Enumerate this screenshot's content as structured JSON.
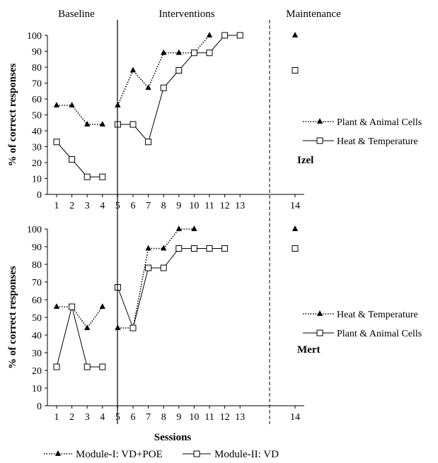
{
  "phases": [
    "Baseline",
    "Interventions",
    "Maintenance"
  ],
  "xlabel": "Sessions",
  "bottom_legend": [
    {
      "label": "Module-I: VD+POE",
      "marker": "triangle",
      "style": "dotted"
    },
    {
      "label": "Module-II: VD",
      "marker": "square",
      "style": "solid"
    }
  ],
  "colors": {
    "line": "#000000",
    "marker_fill_square": "#ffffff",
    "marker_fill_triangle": "#000000"
  },
  "chart_data": [
    {
      "type": "line",
      "participant": "Izel",
      "ylabel": "% of correct responses",
      "ylim": [
        0,
        100
      ],
      "yticks": [
        0,
        10,
        20,
        30,
        40,
        50,
        60,
        70,
        80,
        90,
        100
      ],
      "xticks": [
        1,
        2,
        3,
        4,
        5,
        6,
        7,
        8,
        9,
        10,
        11,
        12,
        13,
        14
      ],
      "grid": false,
      "legend_position": "right",
      "series": [
        {
          "name": "Plant & Animal Cells",
          "marker": "triangle",
          "style": "dotted",
          "segments": [
            [
              [
                1,
                56
              ],
              [
                2,
                56
              ],
              [
                3,
                44
              ],
              [
                4,
                44
              ]
            ],
            [
              [
                5,
                56
              ],
              [
                6,
                78
              ],
              [
                7,
                67
              ],
              [
                8,
                89
              ],
              [
                9,
                89
              ],
              [
                10,
                89
              ],
              [
                11,
                100
              ]
            ],
            [
              [
                14,
                100
              ]
            ]
          ]
        },
        {
          "name": "Heat & Temperature",
          "marker": "square",
          "style": "solid",
          "segments": [
            [
              [
                1,
                33
              ],
              [
                2,
                22
              ],
              [
                3,
                11
              ],
              [
                4,
                11
              ]
            ],
            [
              [
                5,
                44
              ],
              [
                6,
                44
              ],
              [
                7,
                33
              ],
              [
                8,
                67
              ],
              [
                9,
                78
              ],
              [
                10,
                89
              ],
              [
                11,
                89
              ],
              [
                12,
                100
              ],
              [
                13,
                100
              ]
            ],
            [
              [
                14,
                78
              ]
            ]
          ]
        }
      ]
    },
    {
      "type": "line",
      "participant": "Mert",
      "ylabel": "% of correct responses",
      "ylim": [
        0,
        100
      ],
      "yticks": [
        0,
        10,
        20,
        30,
        40,
        50,
        60,
        70,
        80,
        90,
        100
      ],
      "xticks": [
        1,
        2,
        3,
        4,
        5,
        6,
        7,
        8,
        9,
        10,
        11,
        12,
        13,
        14
      ],
      "grid": false,
      "legend_position": "right",
      "series": [
        {
          "name": "Heat & Temperature",
          "marker": "triangle",
          "style": "dotted",
          "segments": [
            [
              [
                1,
                56
              ],
              [
                2,
                56
              ],
              [
                3,
                44
              ],
              [
                4,
                56
              ]
            ],
            [
              [
                5,
                44
              ],
              [
                6,
                44
              ],
              [
                7,
                89
              ],
              [
                8,
                89
              ],
              [
                9,
                100
              ],
              [
                10,
                100
              ]
            ],
            [
              [
                14,
                100
              ]
            ]
          ]
        },
        {
          "name": "Plant & Animal Cells",
          "marker": "square",
          "style": "solid",
          "segments": [
            [
              [
                1,
                22
              ],
              [
                2,
                56
              ],
              [
                3,
                22
              ],
              [
                4,
                22
              ]
            ],
            [
              [
                5,
                67
              ],
              [
                6,
                44
              ],
              [
                7,
                78
              ],
              [
                8,
                78
              ],
              [
                9,
                89
              ],
              [
                10,
                89
              ],
              [
                11,
                89
              ],
              [
                12,
                89
              ]
            ],
            [
              [
                14,
                89
              ]
            ]
          ]
        }
      ]
    }
  ]
}
